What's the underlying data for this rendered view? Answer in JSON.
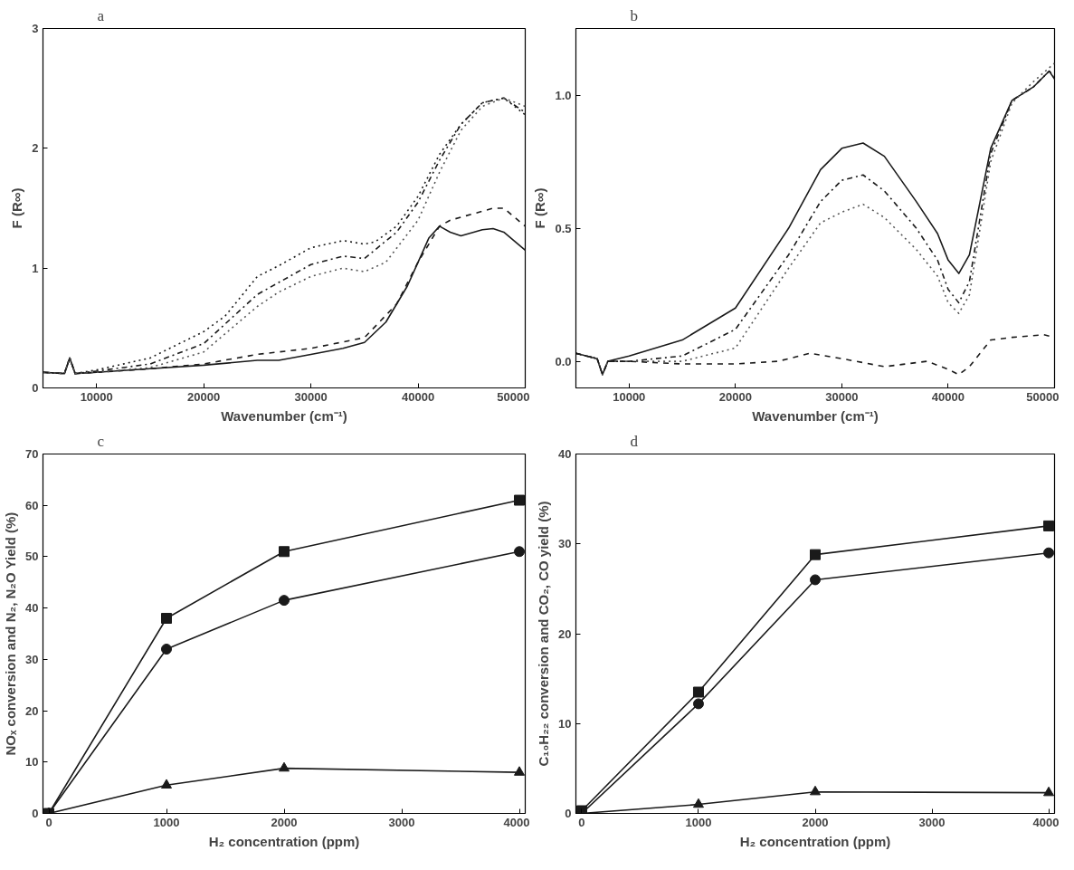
{
  "chart_data": [
    {
      "type": "line",
      "title": "a",
      "xlabel": "Wavenumber (cm⁻¹)",
      "ylabel": "F (R∞)",
      "xlim": [
        5000,
        50000
      ],
      "ylim": [
        0,
        3
      ],
      "xticks": [
        10000,
        20000,
        30000,
        40000,
        50000
      ],
      "yticks": [
        0,
        1,
        2,
        3
      ],
      "grid": false,
      "marker": "none",
      "series": [
        {
          "color": "#1a1a1a",
          "line_style": "solid",
          "x": [
            5000,
            7000,
            7500,
            8000,
            10000,
            15000,
            20000,
            25000,
            27000,
            30000,
            33000,
            35000,
            37000,
            39000,
            40000,
            41000,
            42000,
            43000,
            44000,
            46000,
            47000,
            48000,
            50000
          ],
          "values": [
            0.13,
            0.12,
            0.25,
            0.12,
            0.13,
            0.16,
            0.19,
            0.23,
            0.23,
            0.28,
            0.33,
            0.38,
            0.55,
            0.85,
            1.05,
            1.25,
            1.35,
            1.3,
            1.27,
            1.32,
            1.33,
            1.3,
            1.15
          ]
        },
        {
          "color": "#1a1a1a",
          "line_style": "dashed",
          "x": [
            5000,
            7000,
            7500,
            8000,
            10000,
            15000,
            20000,
            25000,
            30000,
            35000,
            38000,
            40000,
            42000,
            43000,
            45000,
            47000,
            48000,
            50000
          ],
          "values": [
            0.13,
            0.12,
            0.25,
            0.12,
            0.13,
            0.16,
            0.2,
            0.28,
            0.33,
            0.42,
            0.7,
            1.05,
            1.35,
            1.4,
            1.45,
            1.5,
            1.5,
            1.35
          ]
        },
        {
          "color": "#1a1a1a",
          "line_style": "dotted",
          "x": [
            5000,
            7000,
            7500,
            8000,
            10000,
            15000,
            20000,
            22000,
            25000,
            27000,
            30000,
            33000,
            35000,
            36000,
            38000,
            40000,
            42000,
            44000,
            46000,
            48000,
            50000
          ],
          "values": [
            0.13,
            0.12,
            0.25,
            0.12,
            0.15,
            0.25,
            0.47,
            0.6,
            0.93,
            1.02,
            1.17,
            1.23,
            1.2,
            1.22,
            1.35,
            1.6,
            1.95,
            2.2,
            2.38,
            2.42,
            2.28
          ]
        },
        {
          "color": "#1a1a1a",
          "line_style": "dashdot",
          "x": [
            5000,
            7000,
            7500,
            8000,
            10000,
            15000,
            20000,
            25000,
            27000,
            30000,
            33000,
            35000,
            38000,
            40000,
            42000,
            44000,
            46000,
            48000,
            50000
          ],
          "values": [
            0.13,
            0.12,
            0.25,
            0.12,
            0.14,
            0.2,
            0.37,
            0.78,
            0.88,
            1.03,
            1.1,
            1.08,
            1.3,
            1.55,
            1.9,
            2.2,
            2.38,
            2.42,
            2.3
          ]
        },
        {
          "color": "#555555",
          "line_style": "dotted",
          "x": [
            5000,
            7000,
            7500,
            8000,
            10000,
            15000,
            20000,
            25000,
            27000,
            30000,
            33000,
            35000,
            37000,
            40000,
            42000,
            44000,
            46000,
            48000,
            50000
          ],
          "values": [
            0.13,
            0.12,
            0.25,
            0.12,
            0.13,
            0.17,
            0.3,
            0.68,
            0.8,
            0.93,
            1.0,
            0.97,
            1.05,
            1.4,
            1.8,
            2.15,
            2.35,
            2.42,
            2.35
          ]
        }
      ]
    },
    {
      "type": "line",
      "title": "b",
      "xlabel": "Wavenumber (cm⁻¹)",
      "ylabel": "F (R∞)",
      "xlim": [
        5000,
        50000
      ],
      "ylim": [
        -0.1,
        1.25
      ],
      "xticks": [
        10000,
        20000,
        30000,
        40000,
        50000
      ],
      "yticks": [
        {
          "value": 0,
          "label": "0.0"
        },
        0.5,
        {
          "value": 1,
          "label": "1.0"
        }
      ],
      "grid": false,
      "marker": "none",
      "series": [
        {
          "color": "#1a1a1a",
          "line_style": "solid",
          "x": [
            5000,
            7000,
            7500,
            8000,
            10000,
            15000,
            20000,
            25000,
            28000,
            30000,
            32000,
            34000,
            37000,
            39000,
            40000,
            41000,
            42000,
            44000,
            46000,
            48000,
            49500,
            50000
          ],
          "values": [
            0.03,
            0.01,
            -0.05,
            0.0,
            0.02,
            0.08,
            0.2,
            0.5,
            0.72,
            0.8,
            0.82,
            0.77,
            0.6,
            0.48,
            0.38,
            0.33,
            0.4,
            0.8,
            0.98,
            1.03,
            1.09,
            1.06
          ]
        },
        {
          "color": "#1a1a1a",
          "line_style": "dashdot",
          "x": [
            5000,
            7000,
            7500,
            8000,
            10000,
            15000,
            20000,
            25000,
            28000,
            30000,
            32000,
            34000,
            37000,
            39000,
            40000,
            41000,
            42000,
            44000,
            46000,
            48000,
            49500,
            50000
          ],
          "values": [
            0.03,
            0.01,
            -0.05,
            0.0,
            0.0,
            0.02,
            0.12,
            0.4,
            0.6,
            0.68,
            0.7,
            0.64,
            0.5,
            0.38,
            0.27,
            0.22,
            0.3,
            0.78,
            0.98,
            1.03,
            1.09,
            1.07
          ]
        },
        {
          "color": "#555555",
          "line_style": "dotted",
          "x": [
            5000,
            7000,
            7500,
            8000,
            10000,
            15000,
            20000,
            25000,
            28000,
            30000,
            32000,
            34000,
            37000,
            39000,
            40000,
            41000,
            42000,
            44000,
            46000,
            48000,
            50000
          ],
          "values": [
            0.03,
            0.01,
            -0.05,
            0.0,
            0.0,
            0.0,
            0.05,
            0.35,
            0.52,
            0.56,
            0.59,
            0.54,
            0.42,
            0.32,
            0.22,
            0.18,
            0.25,
            0.75,
            0.97,
            1.05,
            1.12
          ]
        },
        {
          "color": "#1a1a1a",
          "line_style": "dashed",
          "x": [
            5000,
            7000,
            7500,
            8000,
            10000,
            15000,
            20000,
            24000,
            27000,
            30000,
            34000,
            38000,
            40000,
            41000,
            42000,
            44000,
            46000,
            49000,
            50000
          ],
          "values": [
            0.03,
            0.01,
            -0.05,
            0.0,
            0.0,
            -0.01,
            -0.01,
            0.0,
            0.03,
            0.01,
            -0.02,
            0.0,
            -0.03,
            -0.05,
            -0.02,
            0.08,
            0.09,
            0.1,
            0.09
          ]
        }
      ]
    },
    {
      "type": "line",
      "title": "c",
      "xlabel": "H₂ concentration (ppm)",
      "ylabel": "NOₓ conversion and N₂, N₂O Yield (%)",
      "xlim": [
        -50,
        4050
      ],
      "ylim": [
        0,
        70
      ],
      "xticks": [
        0,
        1000,
        2000,
        3000,
        4000
      ],
      "yticks": [
        0,
        10,
        20,
        30,
        40,
        50,
        60,
        70
      ],
      "grid": false,
      "line_style": "solid",
      "x": [
        0,
        1000,
        2000,
        4000
      ],
      "series": [
        {
          "color": "#1a1a1a",
          "marker": "square",
          "values": [
            0,
            38,
            51,
            61
          ]
        },
        {
          "color": "#1a1a1a",
          "marker": "circle",
          "values": [
            0,
            32,
            41.5,
            51
          ]
        },
        {
          "color": "#1a1a1a",
          "marker": "triangle",
          "values": [
            0,
            5.5,
            8.8,
            8
          ]
        }
      ]
    },
    {
      "type": "line",
      "title": "d",
      "xlabel": "H₂ concentration (ppm)",
      "ylabel": "C₁₀H₂₂ conversion and CO₂, CO yield (%)",
      "xlim": [
        -50,
        4050
      ],
      "ylim": [
        0,
        40
      ],
      "xticks": [
        0,
        1000,
        2000,
        3000,
        4000
      ],
      "yticks": [
        0,
        10,
        20,
        30,
        40
      ],
      "grid": false,
      "line_style": "solid",
      "x": [
        0,
        1000,
        2000,
        4000
      ],
      "series": [
        {
          "color": "#1a1a1a",
          "marker": "square",
          "values": [
            0.3,
            13.5,
            28.8,
            32
          ]
        },
        {
          "color": "#1a1a1a",
          "marker": "circle",
          "values": [
            0,
            12.2,
            26,
            29
          ]
        },
        {
          "color": "#1a1a1a",
          "marker": "triangle",
          "values": [
            0,
            1,
            2.4,
            2.3
          ]
        }
      ]
    }
  ]
}
